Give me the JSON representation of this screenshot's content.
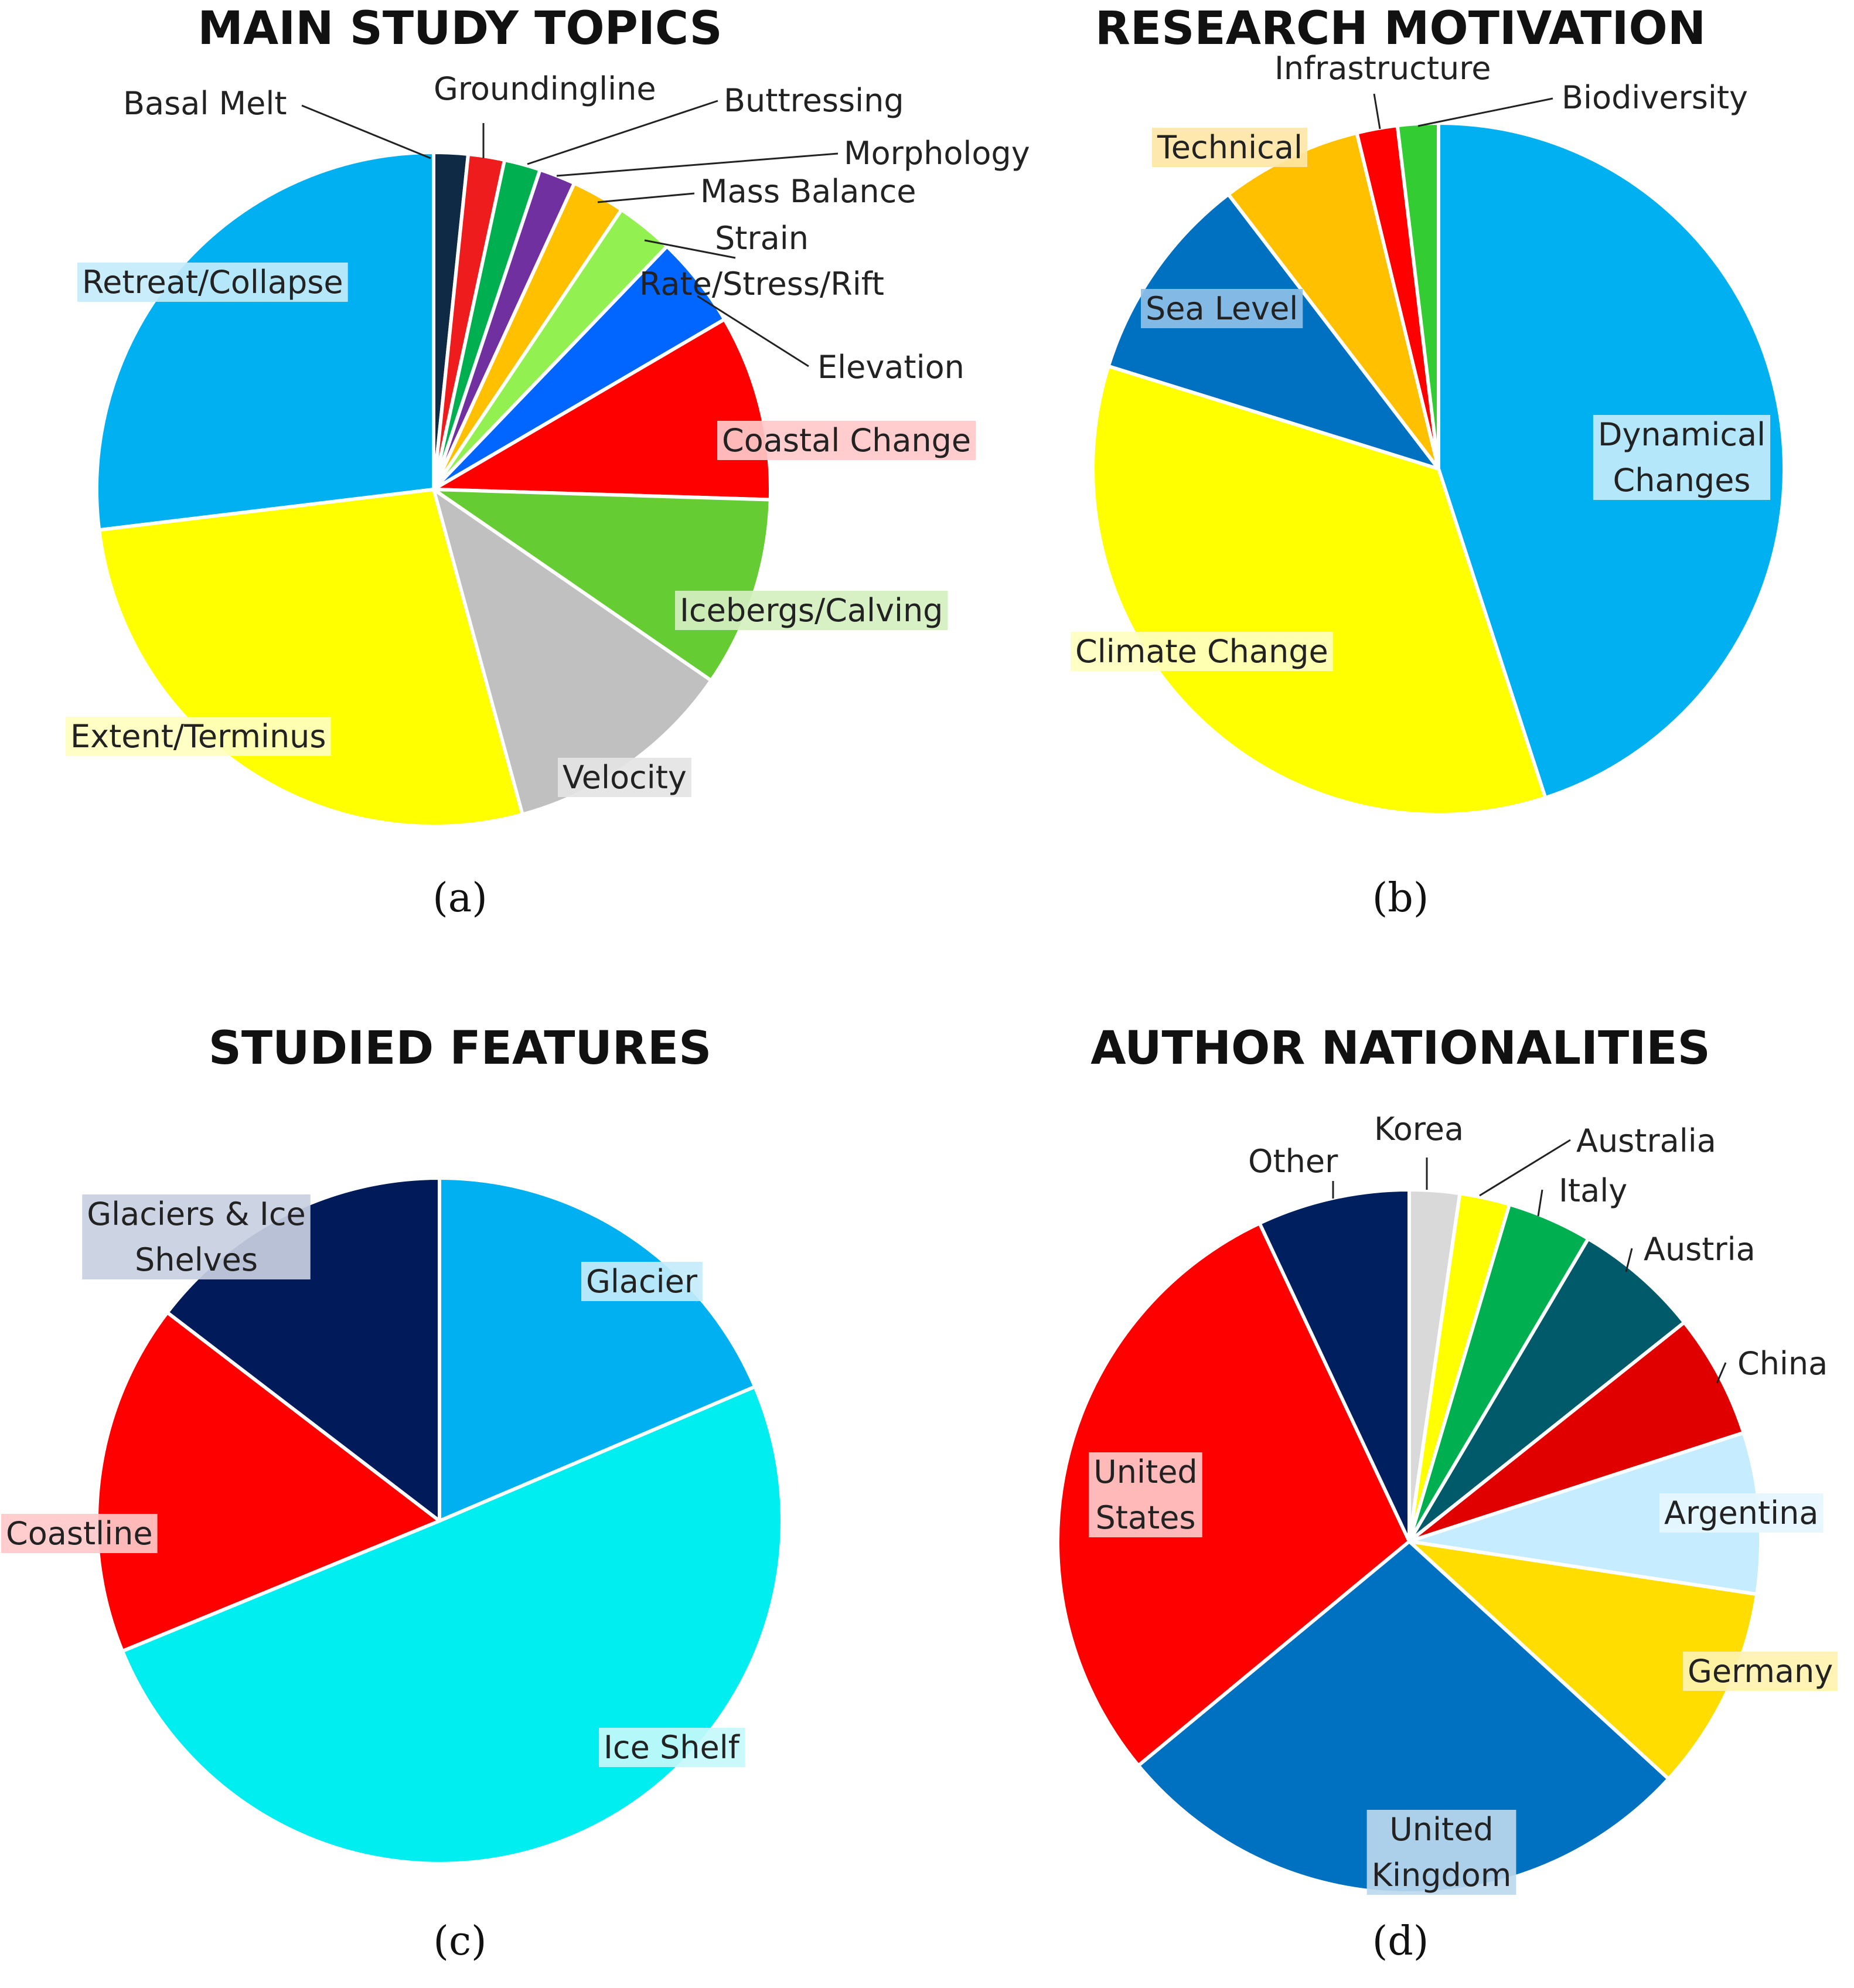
{
  "chart_data": [
    {
      "type": "pie",
      "title": "MAIN STUDY TOPICS",
      "panel_label": "(a)",
      "categories": [
        "Basal Melt",
        "Groundingline",
        "Buttressing",
        "Morphology",
        "Mass Balance",
        "Strain Rate/Stress/Rift",
        "Elevation",
        "Coastal Change",
        "Icebergs/Calving",
        "Velocity",
        "Extent/Terminus",
        "Retreat/Collapse"
      ],
      "values": [
        1.6,
        1.7,
        1.7,
        1.7,
        2.5,
        2.7,
        4.3,
        8.7,
        8.9,
        10.9,
        26.7,
        26.3
      ],
      "colors": [
        "#0f2a44",
        "#ee1c1c",
        "#00b050",
        "#7030a0",
        "#ffc000",
        "#92f050",
        "#0066ff",
        "#ff0000",
        "#66cc33",
        "#c0c0c0",
        "#ffff00",
        "#00b0f0"
      ]
    },
    {
      "type": "pie",
      "title": "RESEARCH MOTIVATION",
      "panel_label": "(b)",
      "categories": [
        "Dynamical Changes",
        "Climate Change",
        "Sea Level",
        "Technical",
        "Infrastructure",
        "Biodiversity"
      ],
      "values": [
        45.0,
        34.8,
        9.8,
        6.6,
        1.9,
        1.9
      ],
      "colors": [
        "#00b0f0",
        "#ffff00",
        "#0070c0",
        "#ffc000",
        "#ff0000",
        "#33cc33"
      ]
    },
    {
      "type": "pie",
      "title": "STUDIED FEATURES",
      "panel_label": "(c)",
      "categories": [
        "Glacier",
        "Ice Shelf",
        "Coastline",
        "Glaciers & Ice Shelves"
      ],
      "values": [
        18.6,
        50.2,
        16.6,
        14.6
      ],
      "colors": [
        "#00b0f0",
        "#00eef0",
        "#ff0000",
        "#001a5a"
      ]
    },
    {
      "type": "pie",
      "title": "AUTHOR NATIONALITIES",
      "panel_label": "(d)",
      "categories": [
        "Korea",
        "Australia",
        "Italy",
        "Austria",
        "China",
        "Argentina",
        "Germany",
        "United Kingdom",
        "United States",
        "Other"
      ],
      "values": [
        2.3,
        2.3,
        3.9,
        5.8,
        5.7,
        7.4,
        9.4,
        27.2,
        29.0,
        7.0
      ],
      "colors": [
        "#d9d9d9",
        "#ffff00",
        "#00b050",
        "#005a6a",
        "#e00000",
        "#c5ecff",
        "#ffdd00",
        "#0070c0",
        "#ff0000",
        "#001f5f"
      ]
    }
  ]
}
